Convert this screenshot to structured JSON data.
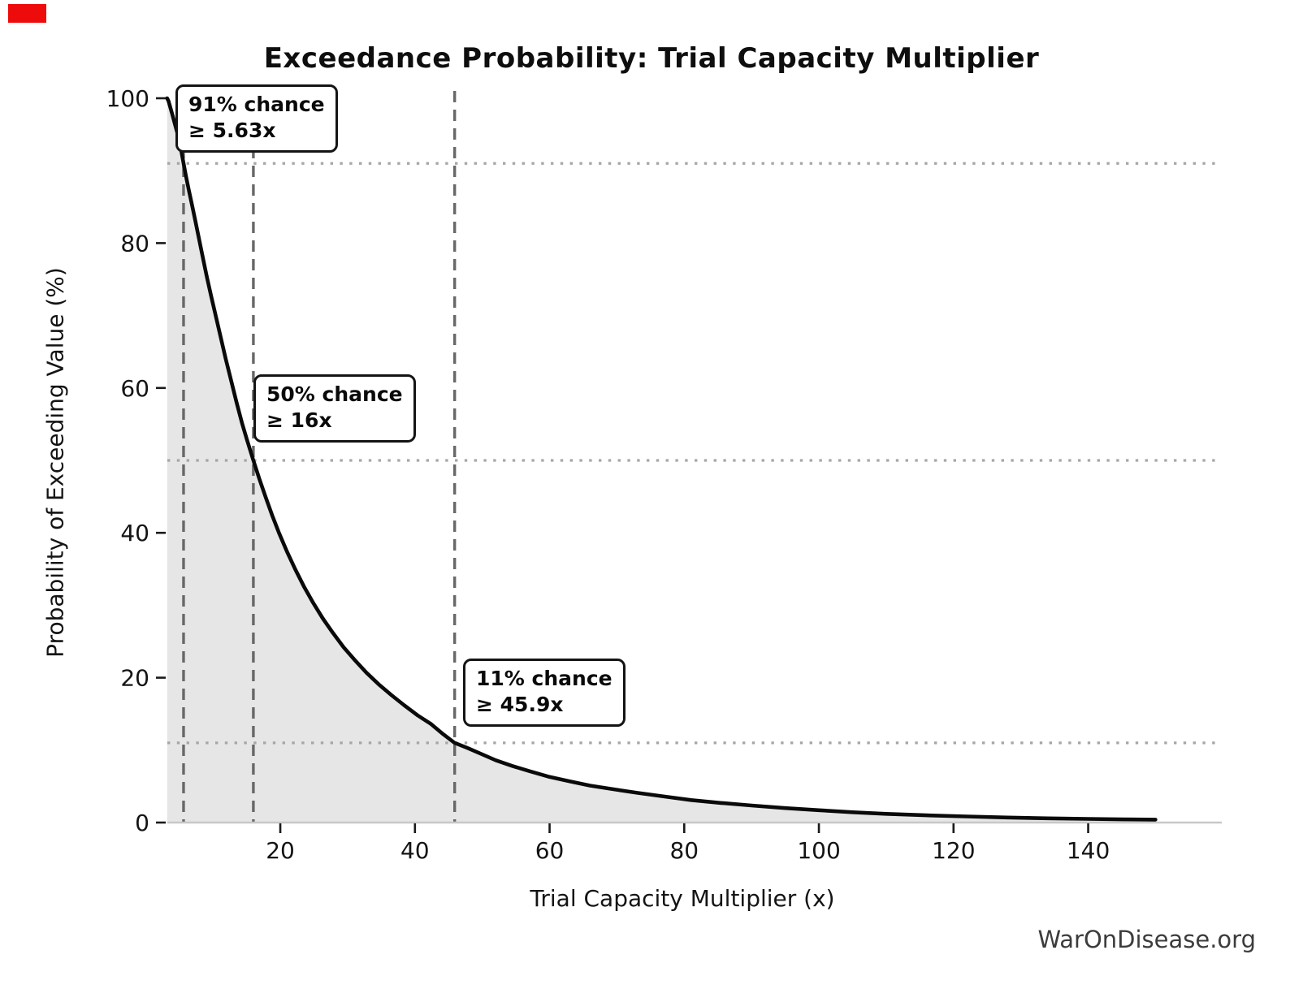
{
  "page": {
    "background_color": "#ffffff",
    "badge_color": "#ee0b0b"
  },
  "watermark": "WarOnDisease.org",
  "chart_data": {
    "type": "line",
    "title": "Exceedance Probability: Trial Capacity Multiplier",
    "xlabel": "Trial Capacity Multiplier (x)",
    "ylabel": "Probability of Exceeding Value (%)",
    "xlim": [
      3.2,
      159.8
    ],
    "ylim": [
      0,
      100
    ],
    "x_ticks": [
      20,
      40,
      60,
      80,
      100,
      120,
      140
    ],
    "y_ticks": [
      0,
      20,
      40,
      60,
      80,
      100
    ],
    "legend": "none",
    "grid": "marker threshold lines only",
    "line_color": "#0a0a0a",
    "fill_color": "#e6e6e6",
    "axis_line_color": "#c8c8c8",
    "dashed_line_color": "#686868",
    "dotted_line_color": "#a6a6a6",
    "markers": [
      {
        "x": 5.63,
        "probability": 91,
        "label_line1": "91% chance",
        "label_line2": "≥ 5.63x"
      },
      {
        "x": 16,
        "probability": 50,
        "label_line1": "50% chance",
        "label_line2": "≥ 16x"
      },
      {
        "x": 45.9,
        "probability": 11,
        "label_line1": "11% chance",
        "label_line2": "≥ 45.9x"
      }
    ],
    "series": [
      {
        "name": "exceedance-curve",
        "points": [
          [
            3.2,
            100
          ],
          [
            3.4,
            99.6
          ],
          [
            3.7,
            98.6
          ],
          [
            4.0,
            97.6
          ],
          [
            4.3,
            96.6
          ],
          [
            4.7,
            95.2
          ],
          [
            5.0,
            94.0
          ],
          [
            5.3,
            92.7
          ],
          [
            5.63,
            91.0
          ],
          [
            6.0,
            89.2
          ],
          [
            6.4,
            87.4
          ],
          [
            6.9,
            85.2
          ],
          [
            7.4,
            83.0
          ],
          [
            7.9,
            80.7
          ],
          [
            8.5,
            78.0
          ],
          [
            9.1,
            75.3
          ],
          [
            9.7,
            72.8
          ],
          [
            10.4,
            70.0
          ],
          [
            11.1,
            67.2
          ],
          [
            11.9,
            64.0
          ],
          [
            12.7,
            61.0
          ],
          [
            13.5,
            58.0
          ],
          [
            14.3,
            55.2
          ],
          [
            15.1,
            52.7
          ],
          [
            16.0,
            50.0
          ],
          [
            16.9,
            47.4
          ],
          [
            17.8,
            45.0
          ],
          [
            18.8,
            42.4
          ],
          [
            19.8,
            40.0
          ],
          [
            21.0,
            37.4
          ],
          [
            22.2,
            35.0
          ],
          [
            23.5,
            32.6
          ],
          [
            24.9,
            30.3
          ],
          [
            26.3,
            28.2
          ],
          [
            27.8,
            26.2
          ],
          [
            29.4,
            24.2
          ],
          [
            31.0,
            22.5
          ],
          [
            32.8,
            20.7
          ],
          [
            34.6,
            19.1
          ],
          [
            36.5,
            17.6
          ],
          [
            38.4,
            16.2
          ],
          [
            40.4,
            14.8
          ],
          [
            42.4,
            13.6
          ],
          [
            44.2,
            12.2
          ],
          [
            45.9,
            11.0
          ],
          [
            47.8,
            10.3
          ],
          [
            49.8,
            9.5
          ],
          [
            52.0,
            8.6
          ],
          [
            54.5,
            7.8
          ],
          [
            57.0,
            7.1
          ],
          [
            60.0,
            6.3
          ],
          [
            63.0,
            5.7
          ],
          [
            66.0,
            5.1
          ],
          [
            69.5,
            4.6
          ],
          [
            73.0,
            4.1
          ],
          [
            77.0,
            3.6
          ],
          [
            81.0,
            3.1
          ],
          [
            85.5,
            2.7
          ],
          [
            90.0,
            2.35
          ],
          [
            95.0,
            2.0
          ],
          [
            100.0,
            1.7
          ],
          [
            105.0,
            1.42
          ],
          [
            110.0,
            1.2
          ],
          [
            116.0,
            1.0
          ],
          [
            122.0,
            0.84
          ],
          [
            128.0,
            0.7
          ],
          [
            134.0,
            0.58
          ],
          [
            140.0,
            0.5
          ],
          [
            145.0,
            0.44
          ],
          [
            150.0,
            0.4
          ]
        ]
      }
    ]
  }
}
